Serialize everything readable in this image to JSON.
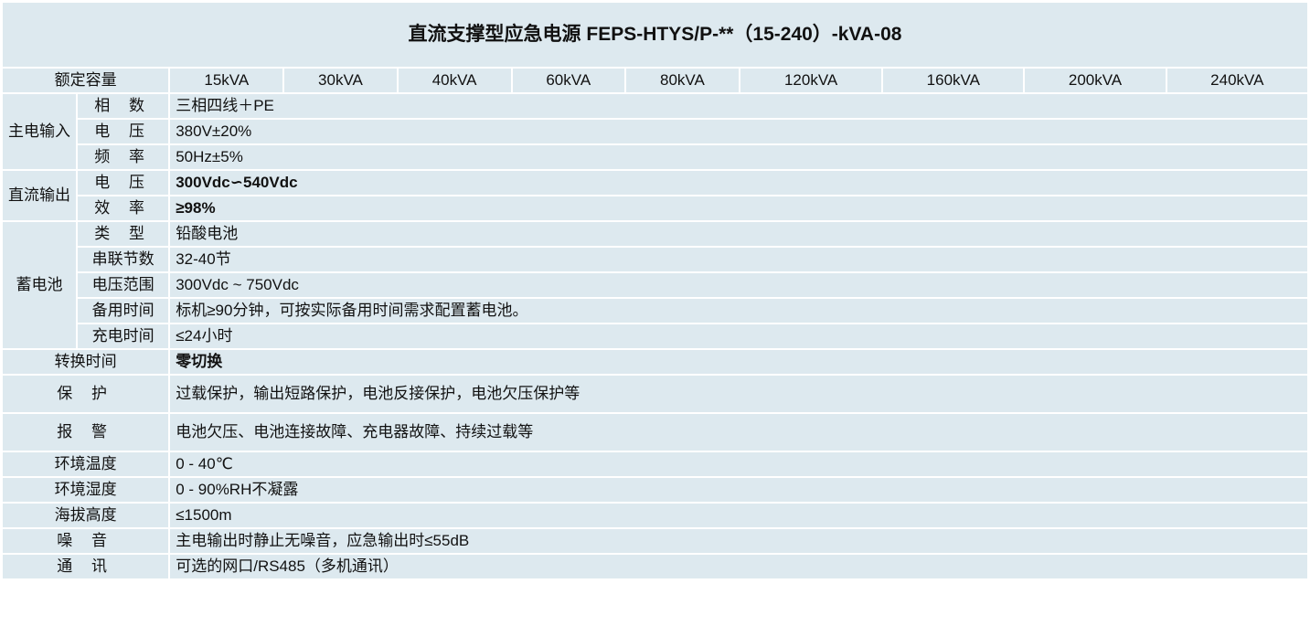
{
  "title": "直流支撑型应急电源 FEPS-HTYS/P-**（15-240）-kVA-08",
  "capacity": {
    "label": "额定容量",
    "values": [
      "15kVA",
      "30kVA",
      "40kVA",
      "60kVA",
      "80kVA",
      "120kVA",
      "160kVA",
      "200kVA",
      "240kVA"
    ]
  },
  "main_input": {
    "group": "主电输入",
    "rows": [
      {
        "label": "相 数",
        "value": "三相四线＋PE"
      },
      {
        "label": "电 压",
        "value": "380V±20%"
      },
      {
        "label": "频 率",
        "value": "50Hz±5%"
      }
    ]
  },
  "dc_output": {
    "group": "直流输出",
    "rows": [
      {
        "label": "电 压",
        "value": "300Vdc∽540Vdc"
      },
      {
        "label": "效 率",
        "value": "≥98%"
      }
    ]
  },
  "battery": {
    "group": "蓄电池",
    "rows": [
      {
        "label": "类 型",
        "value": "铅酸电池"
      },
      {
        "label": "串联节数",
        "value": "32-40节"
      },
      {
        "label": "电压范围",
        "value": "300Vdc ~ 750Vdc"
      },
      {
        "label": "备用时间",
        "value": "标机≥90分钟，可按实际备用时间需求配置蓄电池。"
      },
      {
        "label": "充电时间",
        "value": "≤24小时"
      }
    ]
  },
  "rows": [
    {
      "label": "转换时间",
      "value": "零切换"
    },
    {
      "label": "保 护",
      "value": "过载保护，输出短路保护，电池反接保护，电池欠压保护等"
    },
    {
      "label": "报 警",
      "value": "电池欠压、电池连接故障、充电器故障、持续过载等"
    },
    {
      "label": "环境温度",
      "value": "0 - 40℃"
    },
    {
      "label": "环境湿度",
      "value": "0 - 90%RH不凝露"
    },
    {
      "label": "海拔高度",
      "value": "≤1500m"
    },
    {
      "label": "噪 音",
      "value": "主电输出时静止无噪音，应急输出时≤55dB"
    },
    {
      "label": "通 讯",
      "value": "可选的网口/RS485（多机通讯）"
    }
  ],
  "colors": {
    "cell_bg": "#dde9ef",
    "border": "#ffffff"
  }
}
